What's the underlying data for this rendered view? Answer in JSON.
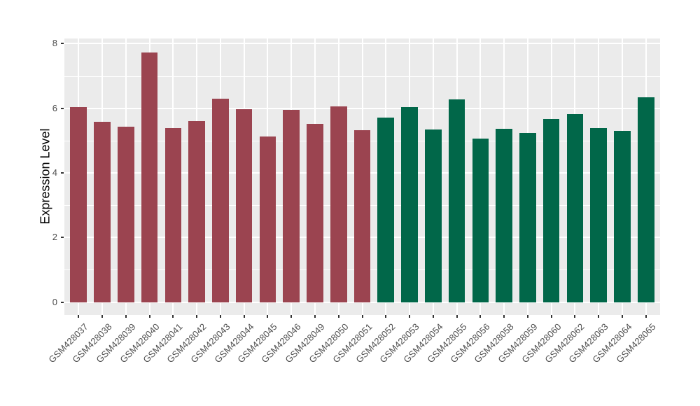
{
  "chart_data": {
    "type": "bar",
    "title": "",
    "xlabel": "",
    "ylabel": "Expression Level",
    "categories": [
      "GSM428037",
      "GSM428038",
      "GSM428039",
      "GSM428040",
      "GSM428041",
      "GSM428042",
      "GSM428043",
      "GSM428044",
      "GSM428045",
      "GSM428046",
      "GSM428049",
      "GSM428050",
      "GSM428051",
      "GSM428052",
      "GSM428053",
      "GSM428054",
      "GSM428055",
      "GSM428056",
      "GSM428058",
      "GSM428059",
      "GSM428060",
      "GSM428062",
      "GSM428063",
      "GSM428064",
      "GSM428065"
    ],
    "values": [
      6.03,
      5.59,
      5.44,
      7.73,
      5.38,
      5.61,
      6.3,
      5.98,
      5.13,
      5.95,
      5.52,
      6.05,
      5.32,
      5.72,
      6.03,
      5.35,
      6.27,
      5.06,
      5.37,
      5.24,
      5.66,
      5.83,
      5.38,
      5.3,
      6.33
    ],
    "color_group_index": [
      0,
      0,
      0,
      0,
      0,
      0,
      0,
      0,
      0,
      0,
      0,
      0,
      0,
      1,
      1,
      1,
      1,
      1,
      1,
      1,
      1,
      1,
      1,
      1,
      1
    ],
    "palette": [
      "#9B4450",
      "#016749"
    ],
    "ylim": [
      0,
      8
    ],
    "yticks": [
      0,
      2,
      4,
      6,
      8
    ],
    "yticks_minor": [
      1,
      3,
      5,
      7
    ],
    "x_label_rotation_deg": 45,
    "grid": "white major+minor horizontal lines and vertical lines at category centers on grey panel",
    "legend_position": "none",
    "colors": {
      "panel_background": "#EBEBEB",
      "gridline": "#FFFFFF",
      "axis_text": "#4D4D4D",
      "axis_title": "#000000",
      "tick_mark": "#333333",
      "page_background": "#FFFFFF"
    }
  }
}
